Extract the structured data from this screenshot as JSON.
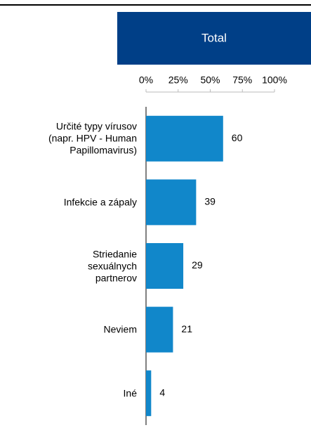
{
  "chart_data": {
    "type": "bar",
    "orientation": "horizontal",
    "categories": [
      "Určité typy vírusov\n(napr. HPV - Human\nPapillomavirus)",
      "Infekcie a zápaly",
      "Striedanie\nsexuálnych\npartnerov",
      "Neviem",
      "Iné"
    ],
    "series": [
      {
        "name": "Total",
        "color": "#1187ca",
        "values": [
          60,
          39,
          29,
          21,
          4
        ]
      }
    ],
    "header_color": "#003f87",
    "xlim": [
      0,
      100
    ],
    "xticks": [
      {
        "value": 0,
        "label": "0%"
      },
      {
        "value": 25,
        "label": "25%"
      },
      {
        "value": 50,
        "label": "50%"
      },
      {
        "value": 75,
        "label": "75%"
      },
      {
        "value": 100,
        "label": "100%"
      }
    ]
  }
}
